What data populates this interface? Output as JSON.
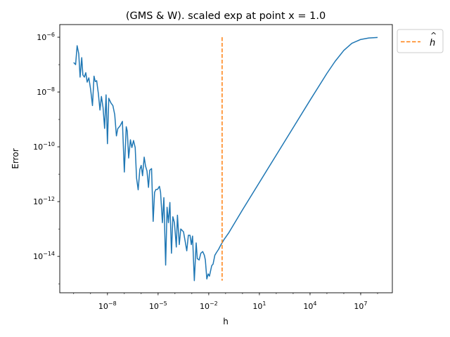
{
  "chart_data": {
    "type": "line",
    "title": "(GMS & W). scaled exp at point x = 1.0",
    "xlabel": "h",
    "ylabel": "Error",
    "xscale": "log",
    "yscale": "log",
    "xlim": [
      1.5e-11,
      750000000.0
    ],
    "ylim": [
      4.7e-16,
      2.9e-06
    ],
    "grid": false,
    "legend_placement": "outside-top-right",
    "x_ticks": [
      {
        "value": 1e-08,
        "base": "10",
        "exp": "−8"
      },
      {
        "value": 1e-05,
        "base": "10",
        "exp": "−5"
      },
      {
        "value": 0.01,
        "base": "10",
        "exp": "−2"
      },
      {
        "value": 10.0,
        "base": "10",
        "exp": "1"
      },
      {
        "value": 10000.0,
        "base": "10",
        "exp": "4"
      },
      {
        "value": 10000000.0,
        "base": "10",
        "exp": "7"
      }
    ],
    "y_ticks": [
      {
        "value": 1e-06,
        "base": "10",
        "exp": "−6"
      },
      {
        "value": 1e-08,
        "base": "10",
        "exp": "−8"
      },
      {
        "value": 1e-10,
        "base": "10",
        "exp": "−10"
      },
      {
        "value": 1e-12,
        "base": "10",
        "exp": "−12"
      },
      {
        "value": 1e-14,
        "base": "10",
        "exp": "−14"
      }
    ],
    "series": [
      {
        "color": "#1f77b4",
        "style": "solid",
        "x": [
          1e-10,
          1.3e-10,
          1.6e-10,
          2e-10,
          2.4e-10,
          3e-10,
          3.5e-10,
          4.3e-10,
          5.2e-10,
          6.3e-10,
          7.9e-10,
          1e-09,
          1.3e-09,
          1.6e-09,
          1.9e-09,
          2.3e-09,
          2.9e-09,
          3.6e-09,
          4.4e-09,
          5.5e-09,
          6.8e-09,
          8.3e-09,
          1e-08,
          1.2e-08,
          1.6e-08,
          2.1e-08,
          2.7e-08,
          3.4e-08,
          4.1e-08,
          5.6e-08,
          7.7e-08,
          1e-07,
          1.3e-07,
          1.5e-07,
          1.8e-07,
          2.3e-07,
          2.8e-07,
          3.5e-07,
          4.4e-07,
          5.3e-07,
          6.6e-07,
          8.3e-07,
          1e-06,
          1.2e-06,
          1.5e-06,
          1.8e-06,
          2.2e-06,
          2.7e-06,
          3.2e-06,
          4.1e-06,
          5.1e-06,
          6.2e-06,
          7.5e-06,
          9.3e-06,
          1.2e-05,
          1.4e-05,
          1.8e-05,
          2.2e-05,
          2.8e-05,
          3.4e-05,
          4.1e-05,
          5e-05,
          6.2e-05,
          7.5e-05,
          9.3e-05,
          0.00012,
          0.00014,
          0.00018,
          0.00022,
          0.00032,
          0.0004,
          0.0005,
          0.00062,
          0.00078,
          0.00093,
          0.0011,
          0.0014,
          0.0018,
          0.0021,
          0.0027,
          0.0034,
          0.0044,
          0.0055,
          0.0063,
          0.0077,
          0.0093,
          0.011,
          0.015,
          0.018,
          0.023,
          0.029,
          0.038,
          0.05,
          0.078,
          0.15,
          1,
          10,
          100,
          1000,
          10000.0,
          100000.0,
          300000.0,
          1000000.0,
          3000000.0,
          10000000.0,
          30000000.0,
          100000000.0
        ],
        "y": [
          1.2e-07,
          1e-07,
          4.9e-07,
          2.5e-07,
          3.5e-08,
          1.8e-07,
          4.2e-08,
          3.5e-08,
          5.1e-08,
          2.3e-08,
          3.3e-08,
          1.3e-08,
          3.2e-09,
          3.8e-08,
          2.4e-08,
          2.6e-08,
          8.7e-09,
          2.2e-09,
          6.9e-09,
          2.7e-09,
          4.7e-10,
          7.9e-09,
          1.3e-10,
          5.9e-09,
          4e-09,
          3.2e-09,
          1.5e-09,
          2.5e-10,
          4.6e-10,
          5.8e-10,
          8.5e-10,
          1.2e-11,
          5.4e-10,
          3.7e-10,
          3.9e-11,
          1.8e-10,
          9.4e-11,
          1.7e-10,
          9.4e-11,
          7.3e-12,
          2.7e-12,
          1.5e-11,
          2.1e-11,
          8.8e-12,
          4.2e-11,
          2e-11,
          1.3e-11,
          3.3e-12,
          1.4e-11,
          1.6e-11,
          1.9e-13,
          2.2e-12,
          2.8e-12,
          2.8e-12,
          3.6e-12,
          2.2e-12,
          1.7e-13,
          1.4e-12,
          4.8e-15,
          6.2e-13,
          1.7e-13,
          9.3e-13,
          1.3e-14,
          2.8e-13,
          1.7e-13,
          2.2e-14,
          3.2e-13,
          2.7e-14,
          1e-13,
          7.9e-14,
          3.6e-14,
          1.6e-14,
          5.9e-14,
          5.9e-14,
          2.7e-14,
          5.5e-14,
          1.3e-15,
          3.1e-14,
          8.3e-15,
          7.4e-15,
          1.3e-14,
          1.5e-14,
          1.1e-14,
          7.4e-15,
          1.5e-15,
          2.3e-15,
          1.9e-15,
          4.6e-15,
          5.2e-15,
          1.1e-14,
          1.4e-14,
          1.8e-14,
          2.5e-14,
          4e-14,
          7.1e-14,
          5e-13,
          5e-12,
          5e-11,
          5e-10,
          5e-09,
          4.8e-08,
          1.3e-07,
          3.3e-07,
          6e-07,
          8.3e-07,
          9.4e-07,
          9.8e-07
        ]
      },
      {
        "name": "ĥ",
        "color": "#ff7f0e",
        "style": "dashed",
        "x": [
          0.062,
          0.062
        ],
        "y": [
          1e-06,
          1.3e-15
        ]
      }
    ],
    "legend": [
      {
        "label": "h",
        "hat": "^",
        "color": "#ff7f0e",
        "style": "dashed"
      }
    ]
  }
}
